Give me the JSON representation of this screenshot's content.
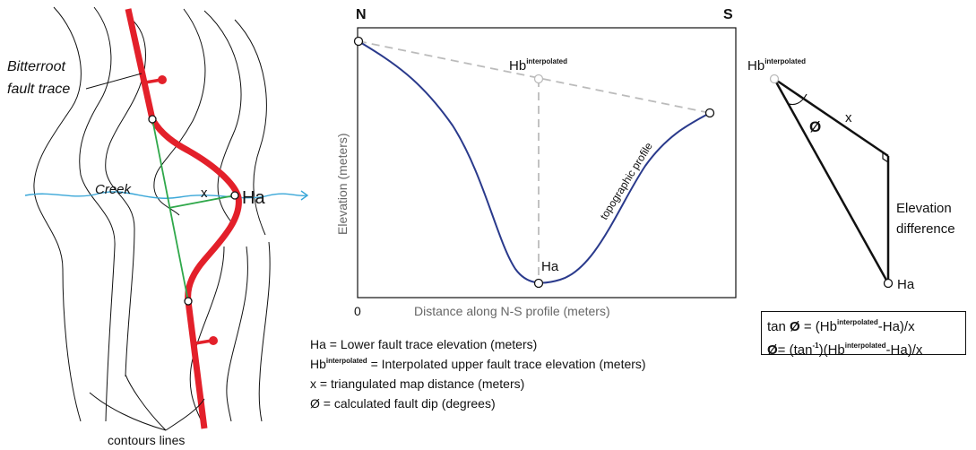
{
  "map": {
    "fault_trace_label_line1": "Bitterroot",
    "fault_trace_label_line2": "fault trace",
    "creek_label": "Creek",
    "x_label": "x",
    "ha_label": "Ha",
    "contours_label": "contours lines",
    "colors": {
      "fault": "#e3202a",
      "triangulation": "#2fa84a",
      "creek": "#3aa7d8",
      "contour": "#111111"
    }
  },
  "profile": {
    "north_label": "N",
    "south_label": "S",
    "ylabel": "Elevation (meters)",
    "xlabel": "Distance along N-S profile (meters)",
    "origin_label": "0",
    "hb_label": "Hb",
    "hb_sup": "interpolated",
    "ha_label": "Ha",
    "profile_label": "topographic profile",
    "colors": {
      "profile": "#2a3a8c",
      "dashed": "#bbbbbb"
    }
  },
  "triangle": {
    "hb_label": "Hb",
    "hb_sup": "interpolated",
    "x_label": "x",
    "phi_label": "Ø",
    "elev_line1": "Elevation",
    "elev_line2": "difference",
    "ha_label": "Ha"
  },
  "formula": {
    "line1_a": "tan ",
    "line1_phi": "Ø",
    "line1_b": " = (Hb",
    "line1_sup": "interpolated",
    "line1_c": "-Ha)/x",
    "line2_phi": "Ø",
    "line2_a": "= (tan",
    "line2_sup": "-1",
    "line2_b": ")(Hb",
    "line2_sup2": "interpolated",
    "line2_c": "-Ha)/x"
  },
  "legend": {
    "ha": "Ha = Lower fault trace elevation (meters)",
    "hb_name": "Hb",
    "hb_sup": "interpolated",
    "hb_rest": " = Interpolated upper fault trace elevation (meters)",
    "x": "x = triangulated map distance (meters)",
    "phi": "Ø = calculated fault dip (degrees)"
  }
}
